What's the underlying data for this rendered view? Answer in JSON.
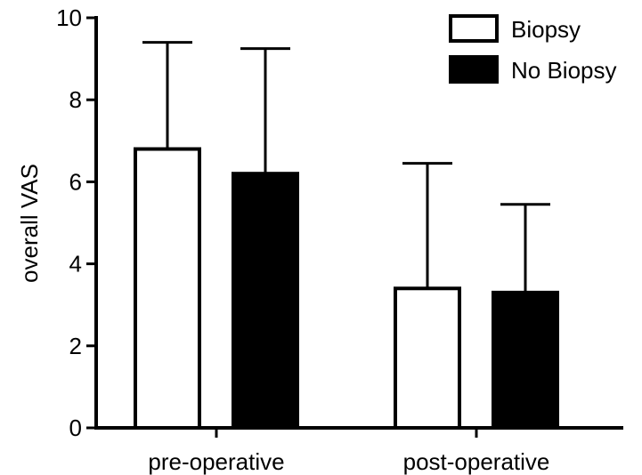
{
  "chart_data": {
    "type": "bar",
    "title": "",
    "xlabel": "",
    "ylabel": "overall VAS",
    "ylim": [
      0,
      10
    ],
    "yticks": [
      0,
      2,
      4,
      6,
      8,
      10
    ],
    "categories": [
      "pre-operative",
      "post-operative"
    ],
    "series": [
      {
        "name": "Biopsy",
        "values": [
          6.8,
          3.4
        ],
        "errors": [
          2.6,
          3.05
        ],
        "fill": "#ffffff"
      },
      {
        "name": "No Biopsy",
        "values": [
          6.2,
          3.3
        ],
        "errors": [
          3.05,
          2.15
        ],
        "fill": "#000000"
      }
    ],
    "legend": "top-right",
    "grid": false
  }
}
